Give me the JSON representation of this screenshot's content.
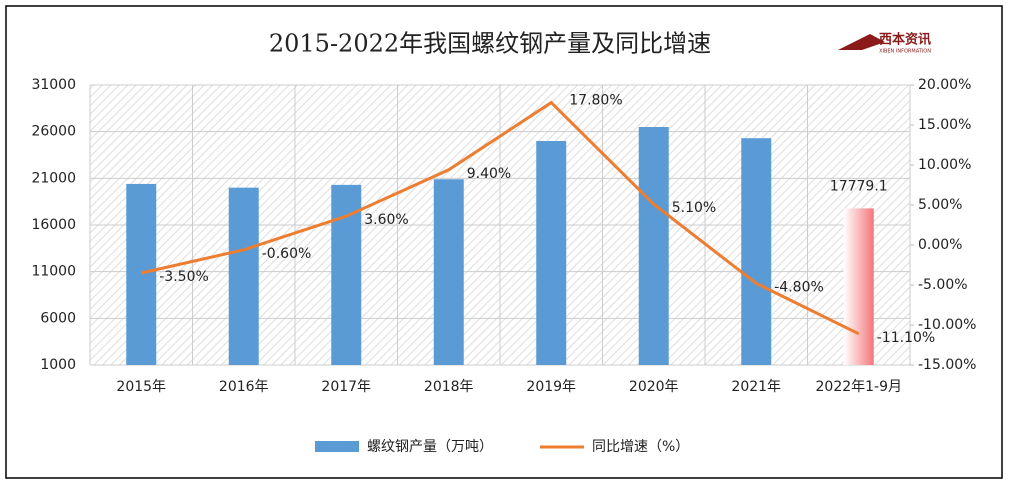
{
  "chart_data": {
    "type": "bar-line",
    "title": "2015-2022年我国螺纹钢产量及同比增速",
    "logo": "西本资讯",
    "logo_subtitle": "XIBEN INFORMATION",
    "categories": [
      "2015年",
      "2016年",
      "2017年",
      "2018年",
      "2019年",
      "2020年",
      "2021年",
      "2022年1-9月"
    ],
    "series": [
      {
        "name": "螺纹钢产量（万吨）",
        "type": "bar",
        "color": "#5b9bd5",
        "highlight_color": "#f4777a",
        "values": [
          20400,
          20000,
          20300,
          20900,
          25000,
          26500,
          25300,
          17779.1
        ],
        "value_labels": [
          null,
          null,
          null,
          null,
          null,
          null,
          null,
          "17779.1"
        ]
      },
      {
        "name": "同比增速（%）",
        "type": "line",
        "axis": "y2",
        "color": "#ed7d31",
        "values": [
          -3.5,
          -0.6,
          3.6,
          9.4,
          17.8,
          5.1,
          -4.8,
          -11.1
        ],
        "value_labels": [
          "-3.50%",
          "-0.60%",
          "3.60%",
          "9.40%",
          "17.80%",
          "5.10%",
          "-4.80%",
          "-11.10%"
        ]
      }
    ],
    "ylim": [
      1000,
      31000
    ],
    "yticks": [
      1000,
      6000,
      11000,
      16000,
      21000,
      26000,
      31000
    ],
    "y2lim": [
      -15,
      20
    ],
    "y2ticks": [
      {
        "value": -15,
        "label": "-15.00%"
      },
      {
        "value": -10,
        "label": "-10.00%"
      },
      {
        "value": -5,
        "label": "-5.00%"
      },
      {
        "value": 0,
        "label": "0.00%"
      },
      {
        "value": 5,
        "label": "5.00%"
      },
      {
        "value": 10,
        "label": "10.00%"
      },
      {
        "value": 15,
        "label": "15.00%"
      },
      {
        "value": 20,
        "label": "20.00%"
      }
    ],
    "grid": true,
    "legend": "bottom"
  }
}
